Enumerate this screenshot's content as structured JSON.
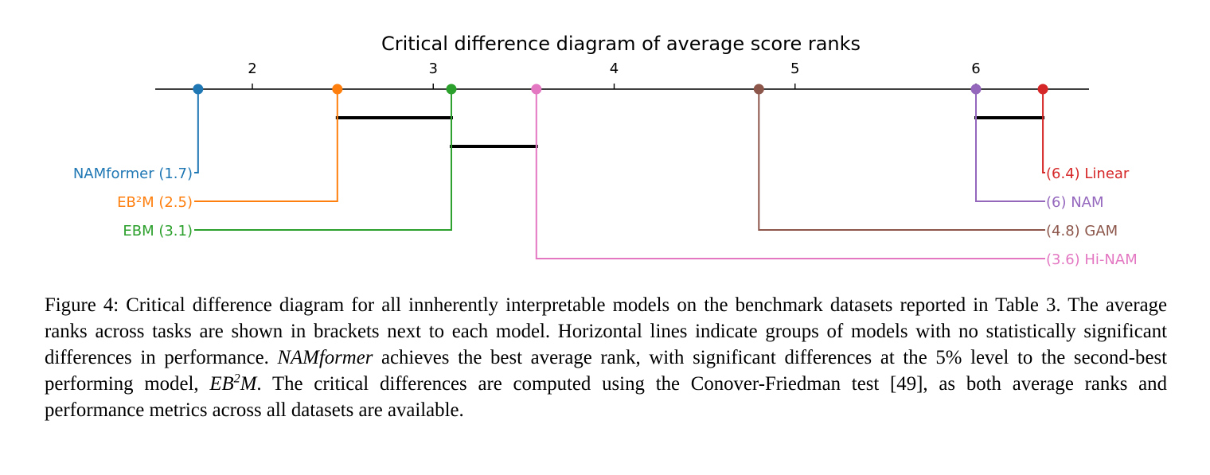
{
  "chart_data": {
    "type": "critical-difference",
    "title": "Critical difference diagram of average score ranks",
    "axis": {
      "ticks": [
        2,
        3,
        4,
        5,
        6
      ],
      "tick_labels": [
        "2",
        "3",
        "4",
        "5",
        "6"
      ],
      "range": [
        1.5,
        6.65
      ],
      "position": "top"
    },
    "models": [
      {
        "name": "NAMformer",
        "rank": 1.7,
        "label": "NAMformer (1.7)",
        "color": "#1f77b4",
        "side": "left"
      },
      {
        "name": "EB²M",
        "rank": 2.47,
        "label": "EB²M (2.5)",
        "color": "#ff7f0e",
        "side": "left"
      },
      {
        "name": "EBM",
        "rank": 3.1,
        "label": "EBM (3.1)",
        "color": "#2ca02c",
        "side": "left"
      },
      {
        "name": "Hi-NAM",
        "rank": 3.57,
        "label": "(3.6) Hi-NAM",
        "color": "#e377c2",
        "side": "right"
      },
      {
        "name": "GAM",
        "rank": 4.8,
        "label": "(4.8) GAM",
        "color": "#8c564b",
        "side": "right"
      },
      {
        "name": "NAM",
        "rank": 6.0,
        "label": "(6) NAM",
        "color": "#9467bd",
        "side": "right"
      },
      {
        "name": "Linear",
        "rank": 6.37,
        "label": "(6.4) Linear",
        "color": "#d62728",
        "side": "right"
      }
    ],
    "cliques": [
      {
        "from": 2.47,
        "to": 3.1
      },
      {
        "from": 3.1,
        "to": 3.57
      },
      {
        "from": 6.0,
        "to": 6.37
      }
    ]
  },
  "caption": {
    "figure_label": "Figure 4:",
    "text_1": " Critical difference diagram for all innherently interpretable models on the benchmark datasets reported in Table 3. The average ranks across tasks are shown in brackets next to each model. Horizontal lines indicate groups of models with no statistically significant differences in performance. ",
    "namformer": "NAMformer",
    "text_2": " achieves the best average rank, with significant differences at the 5% level to the second-best performing model, ",
    "eb2m_base": "EB",
    "eb2m_sup": "2",
    "eb2m_end": "M",
    "text_3": ". The critical differences are computed using the Conover-Friedman test [49], as both average ranks and performance metrics across all datasets are available."
  }
}
